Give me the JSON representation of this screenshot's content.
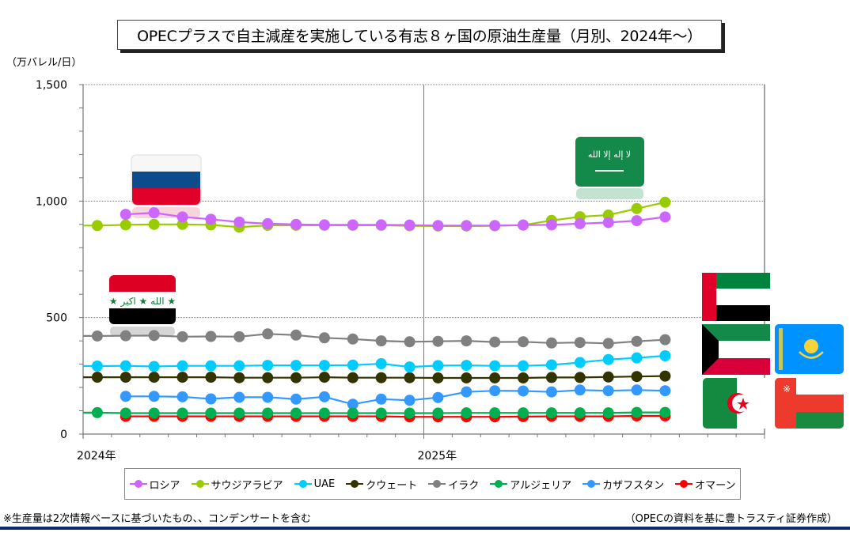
{
  "header": {
    "title": "OPECプラスで自主減産を実施している有志８ヶ国の原油生産量（月別、2024年～）",
    "unit_label": "（万バレル/日）"
  },
  "footer": {
    "note": "※生産量は2次情報ベースに基づいたもの、、コンデンサートを含む",
    "source": "（OPECの資料を基に豊トラスティ証券作成）"
  },
  "flags": {
    "russia": "russia-flag-icon",
    "saudi_arabia": "saudi-arabia-flag-icon",
    "iraq": "iraq-flag-icon",
    "uae": "uae-flag-icon",
    "kuwait": "kuwait-flag-icon",
    "kazakhstan": "kazakhstan-flag-icon",
    "algeria": "algeria-flag-icon",
    "oman": "oman-flag-icon"
  },
  "chart_data": {
    "type": "line",
    "title": "OPECプラスで自主減産を実施している有志８ヶ国の原油生産量（月別、2024年～）",
    "xlabel": "",
    "ylabel": "（万バレル/日）",
    "ylim": [
      0,
      1500
    ],
    "yticks": [
      0,
      500,
      1000,
      1500
    ],
    "ytick_labels": [
      "0",
      "500",
      "1,000",
      "1,500"
    ],
    "x_range_months": 24,
    "xtick_labels": [
      "2024年",
      "2025年"
    ],
    "x": [
      "2024-01",
      "2024-02",
      "2024-03",
      "2024-04",
      "2024-05",
      "2024-06",
      "2024-07",
      "2024-08",
      "2024-09",
      "2024-10",
      "2024-11",
      "2024-12",
      "2025-01",
      "2025-02",
      "2025-03",
      "2025-04",
      "2025-05",
      "2025-06",
      "2025-07",
      "2025-08",
      "2025-09"
    ],
    "grid": "horizontal dotted at 1000 and 1500; vertical at 2025",
    "legend": "bottom",
    "series": [
      {
        "name": "ロシア",
        "color": "#cc66ff",
        "values": [
          null,
          943,
          950,
          932,
          922,
          910,
          903,
          900,
          898,
          898,
          898,
          897,
          895,
          895,
          895,
          897,
          898,
          903,
          908,
          916,
          932
        ]
      },
      {
        "name": "サウジアラビア",
        "color": "#99cc00",
        "values": [
          895,
          898,
          900,
          900,
          898,
          888,
          896,
          896,
          896,
          896,
          896,
          894,
          893,
          893,
          894,
          897,
          917,
          933,
          940,
          968,
          995
        ]
      },
      {
        "name": "UAE",
        "color": "#00ccff",
        "values": [
          292,
          293,
          290,
          293,
          293,
          293,
          295,
          295,
          295,
          296,
          302,
          288,
          294,
          295,
          293,
          293,
          297,
          307,
          320,
          327,
          336
        ]
      },
      {
        "name": "クウェート",
        "color": "#333300",
        "values": [
          244,
          244,
          244,
          244,
          244,
          242,
          242,
          242,
          244,
          242,
          242,
          242,
          241,
          241,
          241,
          241,
          243,
          243,
          245,
          247,
          249
        ]
      },
      {
        "name": "イラク",
        "color": "#808080",
        "values": [
          421,
          422,
          423,
          418,
          419,
          418,
          430,
          425,
          413,
          408,
          400,
          396,
          398,
          400,
          395,
          396,
          391,
          393,
          389,
          398,
          405
        ]
      },
      {
        "name": "アルジェリア",
        "color": "#00b050",
        "values": [
          92,
          90,
          90,
          90,
          90,
          90,
          90,
          90,
          90,
          90,
          90,
          90,
          90,
          91,
          91,
          91,
          91,
          91,
          91,
          93,
          93
        ]
      },
      {
        "name": "カザフスタン",
        "color": "#3399ff",
        "values": [
          null,
          162,
          162,
          160,
          151,
          158,
          158,
          150,
          160,
          128,
          150,
          145,
          157,
          181,
          186,
          185,
          181,
          189,
          186,
          189,
          186
        ]
      },
      {
        "name": "オマーン",
        "color": "#ff0000",
        "values": [
          null,
          76,
          76,
          76,
          76,
          76,
          76,
          76,
          76,
          76,
          76,
          74,
          74,
          74,
          74,
          75,
          76,
          76,
          76,
          78,
          78
        ]
      }
    ]
  }
}
